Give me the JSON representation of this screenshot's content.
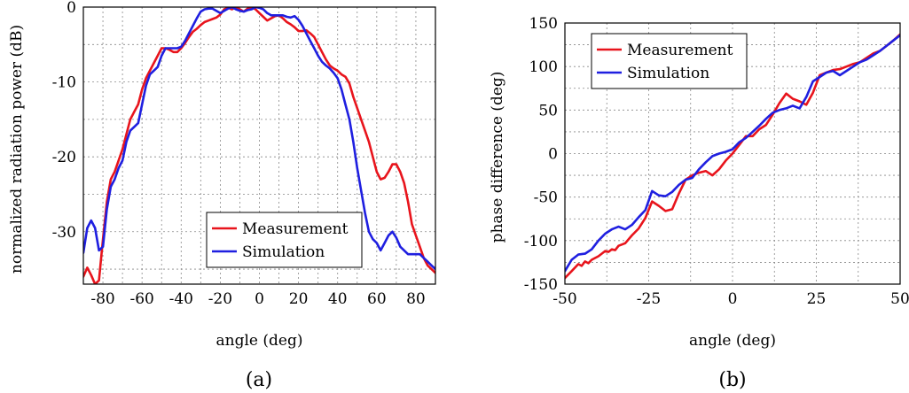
{
  "colors": {
    "measurement": "#e8141c",
    "simulation": "#1f1fe0"
  },
  "chart_data": [
    {
      "type": "line",
      "caption": "(a)",
      "xlabel": "angle (deg)",
      "ylabel": "normalized radiation power (dB)",
      "xlim": [
        -90,
        90
      ],
      "ylim": [
        -37,
        0
      ],
      "xticks": [
        -80,
        -60,
        -40,
        -20,
        0,
        20,
        40,
        60,
        80
      ],
      "yticks": [
        0,
        -10,
        -20,
        -30
      ],
      "xgrid": [
        -90,
        -80,
        -70,
        -60,
        -50,
        -40,
        -30,
        -20,
        -10,
        0,
        10,
        20,
        30,
        40,
        50,
        60,
        70,
        80,
        90
      ],
      "ygrid": [
        0,
        -5,
        -10,
        -15,
        -20,
        -25,
        -30,
        -35
      ],
      "grid": true,
      "legend": {
        "position": "bottom-right",
        "entries": [
          "Measurement",
          "Simulation"
        ]
      },
      "series": [
        {
          "name": "Measurement",
          "x": [
            -90,
            -88,
            -86,
            -84,
            -82,
            -80,
            -78,
            -76,
            -74,
            -72,
            -70,
            -68,
            -66,
            -64,
            -62,
            -60,
            -58,
            -56,
            -54,
            -52,
            -50,
            -48,
            -46,
            -44,
            -42,
            -40,
            -38,
            -36,
            -34,
            -32,
            -30,
            -28,
            -26,
            -24,
            -22,
            -20,
            -18,
            -16,
            -14,
            -12,
            -10,
            -8,
            -6,
            -4,
            -2,
            0,
            2,
            4,
            6,
            8,
            10,
            12,
            14,
            16,
            18,
            20,
            22,
            24,
            26,
            28,
            30,
            32,
            34,
            36,
            38,
            40,
            42,
            44,
            46,
            48,
            50,
            52,
            54,
            56,
            58,
            60,
            62,
            64,
            66,
            68,
            70,
            72,
            74,
            76,
            78,
            80,
            82,
            84,
            86,
            88,
            90
          ],
          "y": [
            -36,
            -34.8,
            -35.8,
            -37,
            -36.5,
            -31,
            -26,
            -23,
            -22,
            -20.5,
            -19,
            -17,
            -15,
            -14,
            -13,
            -11,
            -9.5,
            -8.5,
            -7.5,
            -6.5,
            -5.5,
            -5.5,
            -5.7,
            -6,
            -6,
            -5.5,
            -4.8,
            -4,
            -3.3,
            -2.9,
            -2.4,
            -2,
            -1.8,
            -1.6,
            -1.4,
            -1,
            -0.3,
            -0.1,
            -0.3,
            0,
            -0.3,
            -0.6,
            -0.2,
            0,
            -0.3,
            -0.8,
            -1.3,
            -1.8,
            -1.5,
            -1.2,
            -1.1,
            -1.5,
            -2,
            -2.3,
            -2.7,
            -3.2,
            -3.2,
            -3.1,
            -3.5,
            -4,
            -5,
            -6,
            -7,
            -7.8,
            -8.2,
            -8.5,
            -9,
            -9.3,
            -10.2,
            -12,
            -13.5,
            -15,
            -16.5,
            -18,
            -20,
            -22,
            -23,
            -22.8,
            -22,
            -21,
            -21,
            -22,
            -23.5,
            -26,
            -29,
            -30.5,
            -32,
            -33.5,
            -34.5,
            -35,
            -35.5
          ]
        },
        {
          "name": "Simulation",
          "x": [
            -90,
            -88,
            -86,
            -84,
            -82,
            -80,
            -78,
            -76,
            -74,
            -72,
            -70,
            -68,
            -66,
            -64,
            -62,
            -60,
            -58,
            -56,
            -54,
            -52,
            -50,
            -48,
            -46,
            -44,
            -42,
            -40,
            -38,
            -36,
            -34,
            -32,
            -30,
            -28,
            -26,
            -24,
            -22,
            -20,
            -18,
            -16,
            -14,
            -12,
            -10,
            -8,
            -6,
            -4,
            -2,
            0,
            2,
            4,
            6,
            8,
            10,
            12,
            14,
            16,
            18,
            20,
            22,
            24,
            26,
            28,
            30,
            32,
            34,
            36,
            38,
            40,
            42,
            44,
            46,
            48,
            50,
            52,
            54,
            56,
            58,
            60,
            62,
            64,
            66,
            68,
            70,
            72,
            74,
            76,
            78,
            80,
            82,
            84,
            86,
            88,
            90
          ],
          "y": [
            -32.8,
            -29.5,
            -28.5,
            -29.5,
            -32.5,
            -32,
            -27,
            -24,
            -23,
            -21.5,
            -20.5,
            -18,
            -16.5,
            -16,
            -15.5,
            -13,
            -10.5,
            -9,
            -8.5,
            -8,
            -6.5,
            -5.5,
            -5.5,
            -5.5,
            -5.5,
            -5.3,
            -4.5,
            -3.5,
            -2.5,
            -1.5,
            -0.6,
            -0.3,
            -0.2,
            -0.2,
            -0.5,
            -0.8,
            -0.5,
            -0.2,
            0,
            -0.3,
            -0.5,
            -0.6,
            -0.4,
            -0.3,
            0,
            -0.1,
            -0.3,
            -0.8,
            -1.1,
            -1.1,
            -1.1,
            -1.1,
            -1.3,
            -1.4,
            -1.2,
            -1.7,
            -2.5,
            -3.5,
            -4.5,
            -5.5,
            -6.5,
            -7.3,
            -7.8,
            -8.2,
            -8.8,
            -9.5,
            -11,
            -13,
            -15,
            -18,
            -21.5,
            -24.5,
            -27.5,
            -30,
            -31,
            -31.5,
            -32.5,
            -31.5,
            -30.5,
            -30,
            -30.8,
            -32,
            -32.5,
            -33,
            -33,
            -33,
            -33,
            -33.5,
            -34,
            -34.5,
            -35
          ]
        }
      ]
    },
    {
      "type": "line",
      "caption": "(b)",
      "xlabel": "angle (deg)",
      "ylabel": "phase difference (deg)",
      "xlim": [
        -50,
        50
      ],
      "ylim": [
        -150,
        150
      ],
      "xticks": [
        -50,
        -25,
        0,
        25,
        50
      ],
      "yticks": [
        150,
        100,
        50,
        0,
        -50,
        -100,
        -150
      ],
      "xgrid": [
        -50,
        -37.5,
        -25,
        -12.5,
        0,
        12.5,
        25,
        37.5,
        50
      ],
      "ygrid": [
        150,
        125,
        100,
        75,
        50,
        25,
        0,
        -25,
        -50,
        -75,
        -100,
        -125,
        -150
      ],
      "grid": true,
      "legend": {
        "position": "top-left",
        "entries": [
          "Measurement",
          "Simulation"
        ]
      },
      "series": [
        {
          "name": "Measurement",
          "x": [
            -50,
            -48,
            -46,
            -45,
            -44,
            -43,
            -42,
            -41,
            -40,
            -38,
            -37,
            -36,
            -35,
            -34,
            -32,
            -30,
            -28,
            -26,
            -24,
            -22,
            -20,
            -18,
            -16,
            -14,
            -12,
            -10,
            -8,
            -6,
            -4,
            -2,
            0,
            2,
            4,
            6,
            8,
            10,
            12,
            14,
            16,
            18,
            20,
            22,
            24,
            26,
            28,
            30,
            32,
            34,
            36,
            38,
            40,
            42,
            44,
            46,
            48,
            50
          ],
          "y": [
            -143,
            -135,
            -127,
            -129,
            -124,
            -126,
            -122,
            -120,
            -118,
            -112,
            -113,
            -110,
            -111,
            -106,
            -103,
            -94,
            -86,
            -74,
            -55,
            -60,
            -66,
            -64,
            -46,
            -30,
            -25,
            -22,
            -20,
            -25,
            -18,
            -8,
            0,
            10,
            20,
            20,
            28,
            33,
            45,
            58,
            69,
            63,
            60,
            56,
            70,
            90,
            93,
            96,
            97,
            100,
            103,
            105,
            110,
            115,
            118,
            124,
            130,
            137
          ]
        },
        {
          "name": "Simulation",
          "x": [
            -50,
            -48,
            -46,
            -44,
            -42,
            -40,
            -38,
            -36,
            -34,
            -32,
            -30,
            -28,
            -26,
            -24,
            -22,
            -20,
            -18,
            -16,
            -14,
            -12,
            -10,
            -8,
            -6,
            -4,
            -2,
            0,
            2,
            4,
            6,
            8,
            10,
            12,
            14,
            16,
            18,
            20,
            22,
            24,
            26,
            28,
            30,
            32,
            34,
            36,
            38,
            40,
            42,
            44,
            46,
            48,
            50
          ],
          "y": [
            -135,
            -122,
            -116,
            -115,
            -110,
            -100,
            -92,
            -87,
            -84,
            -87,
            -82,
            -73,
            -65,
            -43,
            -48,
            -49,
            -44,
            -36,
            -30,
            -28,
            -18,
            -10,
            -3,
            0,
            2,
            5,
            13,
            18,
            25,
            32,
            40,
            47,
            50,
            52,
            55,
            52,
            65,
            83,
            88,
            93,
            95,
            90,
            95,
            100,
            105,
            108,
            113,
            118,
            124,
            130,
            136
          ]
        }
      ]
    }
  ]
}
